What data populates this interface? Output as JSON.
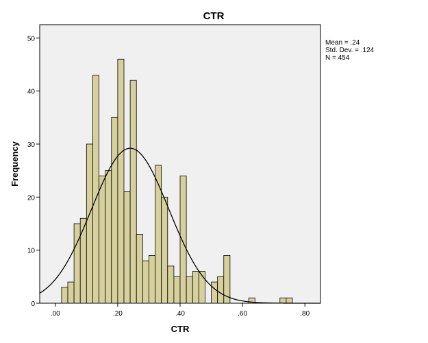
{
  "chart_data": {
    "type": "histogram",
    "title": "CTR",
    "xlabel": "CTR",
    "ylabel": "Frequency",
    "xlim": [
      -0.05,
      0.85
    ],
    "ylim": [
      0,
      52.5
    ],
    "bin_width": 0.02,
    "x_ticks": [
      {
        "value": 0.0,
        "label": ".00"
      },
      {
        "value": 0.2,
        "label": ".20"
      },
      {
        "value": 0.4,
        "label": ".40"
      },
      {
        "value": 0.6,
        "label": ".60"
      },
      {
        "value": 0.8,
        "label": ".80"
      }
    ],
    "y_ticks": [
      {
        "value": 0,
        "label": "0"
      },
      {
        "value": 10,
        "label": "10"
      },
      {
        "value": 20,
        "label": "20"
      },
      {
        "value": 30,
        "label": "30"
      },
      {
        "value": 40,
        "label": "40"
      },
      {
        "value": 50,
        "label": "50"
      }
    ],
    "bins": [
      {
        "start": 0.02,
        "count": 3
      },
      {
        "start": 0.04,
        "count": 4
      },
      {
        "start": 0.06,
        "count": 15
      },
      {
        "start": 0.08,
        "count": 16
      },
      {
        "start": 0.1,
        "count": 30
      },
      {
        "start": 0.12,
        "count": 43
      },
      {
        "start": 0.14,
        "count": 24
      },
      {
        "start": 0.16,
        "count": 25
      },
      {
        "start": 0.18,
        "count": 35
      },
      {
        "start": 0.2,
        "count": 46
      },
      {
        "start": 0.22,
        "count": 21
      },
      {
        "start": 0.24,
        "count": 42
      },
      {
        "start": 0.26,
        "count": 13
      },
      {
        "start": 0.28,
        "count": 8
      },
      {
        "start": 0.3,
        "count": 9
      },
      {
        "start": 0.32,
        "count": 26
      },
      {
        "start": 0.34,
        "count": 20
      },
      {
        "start": 0.36,
        "count": 7
      },
      {
        "start": 0.38,
        "count": 5
      },
      {
        "start": 0.4,
        "count": 24
      },
      {
        "start": 0.42,
        "count": 5
      },
      {
        "start": 0.44,
        "count": 6
      },
      {
        "start": 0.46,
        "count": 6
      },
      {
        "start": 0.48,
        "count": 0
      },
      {
        "start": 0.5,
        "count": 4
      },
      {
        "start": 0.52,
        "count": 5
      },
      {
        "start": 0.54,
        "count": 9
      },
      {
        "start": 0.56,
        "count": 0
      },
      {
        "start": 0.58,
        "count": 0
      },
      {
        "start": 0.6,
        "count": 0
      },
      {
        "start": 0.62,
        "count": 1
      },
      {
        "start": 0.64,
        "count": 0
      },
      {
        "start": 0.66,
        "count": 0
      },
      {
        "start": 0.68,
        "count": 0
      },
      {
        "start": 0.7,
        "count": 0
      },
      {
        "start": 0.72,
        "count": 1
      },
      {
        "start": 0.74,
        "count": 1
      }
    ],
    "normal_curve": {
      "mean": 0.24,
      "std_dev": 0.124,
      "n": 454
    },
    "stats_text": [
      "Mean = .24",
      "Std. Dev. = .124",
      "N = 454"
    ],
    "grid": false,
    "legend": "none",
    "colors": {
      "bar_fill": "#d6d09c",
      "bar_stroke": "#000000",
      "plot_background": "#f0f0f0",
      "curve": "#000000"
    }
  }
}
